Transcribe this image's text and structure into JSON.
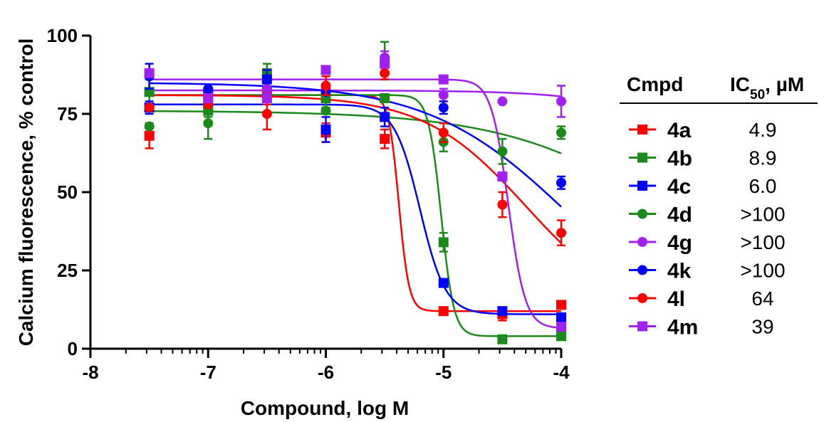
{
  "chart_data": {
    "type": "scatter",
    "xlabel": "Compound, log M",
    "ylabel": "Calcium fluorescence, % control",
    "xlim": [
      -8,
      -4
    ],
    "ylim": [
      0,
      100
    ],
    "x_ticks": [
      "-8",
      "-7",
      "-6",
      "-5",
      "-4"
    ],
    "y_ticks": [
      "0",
      "25",
      "50",
      "75",
      "100"
    ],
    "x_scale": "log concentration with minor decade ticks",
    "legend": {
      "placement": "right",
      "header_name": "Cmpd",
      "header_value_main": "IC",
      "header_value_sub": "50",
      "header_value_unit": ", µM"
    },
    "series": [
      {
        "name": "4a",
        "ic50": "4.9",
        "color": "#ff0000",
        "marker": "square",
        "x": [
          -7.5,
          -7,
          -6.5,
          -6,
          -5.5,
          -5,
          -4.5,
          -4
        ],
        "y": [
          68,
          78,
          82,
          69,
          67,
          12,
          11,
          14
        ],
        "err": [
          4,
          0,
          4,
          3,
          3,
          0,
          2,
          0
        ],
        "fit": {
          "top": 81,
          "bottom": 12,
          "logec50": -5.38,
          "hill": 10
        }
      },
      {
        "name": "4b",
        "ic50": "8.9",
        "color": "#1a8a1a",
        "marker": "square",
        "x": [
          -7.5,
          -7,
          -6.5,
          -6,
          -5.5,
          -5,
          -4.5,
          -4
        ],
        "y": [
          82,
          76,
          88,
          80,
          80,
          34,
          3,
          4
        ],
        "err": [
          4,
          2,
          3,
          3,
          0,
          3,
          0,
          0
        ],
        "fit": {
          "top": 81,
          "bottom": 4,
          "logec50": -5.02,
          "hill": 8
        }
      },
      {
        "name": "4c",
        "ic50": "6.0",
        "color": "#0000ff",
        "marker": "square",
        "x": [
          -7.5,
          -7,
          -6.5,
          -6,
          -5.5,
          -5,
          -4.5,
          -4
        ],
        "y": [
          77,
          81,
          86,
          70,
          74,
          21,
          12,
          10
        ],
        "err": [
          2,
          2,
          3,
          4,
          3,
          0,
          0,
          0
        ],
        "fit": {
          "top": 78,
          "bottom": 11,
          "logec50": -5.2,
          "hill": 4
        }
      },
      {
        "name": "4d",
        "ic50": ">100",
        "color": "#1a8a1a",
        "marker": "circle",
        "x": [
          -7.5,
          -7,
          -6.5,
          -6,
          -5.5,
          -5,
          -4.5,
          -4
        ],
        "y": [
          71,
          72,
          80,
          76,
          92,
          66,
          63,
          69
        ],
        "err": [
          0,
          5,
          0,
          0,
          6,
          3,
          4,
          2
        ],
        "fit": {
          "top": 76,
          "bottom": 0,
          "logec50": -2.9,
          "hill": 0.6
        }
      },
      {
        "name": "4g",
        "ic50": ">100",
        "color": "#a020f0",
        "marker": "circle",
        "x": [
          -7.5,
          -7,
          -6.5,
          -6,
          -5.5,
          -5,
          -4.5,
          -4
        ],
        "y": [
          87,
          81,
          83,
          83,
          93,
          81,
          79,
          79
        ],
        "err": [
          0,
          0,
          0,
          0,
          2,
          2,
          0,
          5
        ],
        "fit": {
          "top": 82.5,
          "bottom": 0,
          "logec50": -2.2,
          "hill": 0.9
        }
      },
      {
        "name": "4k",
        "ic50": ">100",
        "color": "#0000ff",
        "marker": "circle",
        "x": [
          -7.5,
          -7,
          -6.5,
          -6,
          -5.5,
          -5,
          -4.5,
          -4
        ],
        "y": [
          87,
          83,
          86,
          82,
          91,
          77,
          55,
          53
        ],
        "err": [
          4,
          0,
          0,
          0,
          0,
          2,
          0,
          2
        ],
        "fit": {
          "top": 85,
          "bottom": 0,
          "logec50": -3.92,
          "hill": 0.72
        }
      },
      {
        "name": "4l",
        "ic50": "64",
        "color": "#ff0000",
        "marker": "circle",
        "x": [
          -7.5,
          -7,
          -6.5,
          -6,
          -5.5,
          -5,
          -4.5,
          -4
        ],
        "y": [
          77,
          78,
          75,
          84,
          88,
          69,
          46,
          37
        ],
        "err": [
          0,
          0,
          5,
          3,
          2,
          3,
          4,
          4
        ],
        "fit": {
          "top": 81,
          "bottom": 10,
          "logec50": -4.3,
          "hill": 1.0
        }
      },
      {
        "name": "4m",
        "ic50": "39",
        "color": "#a020f0",
        "marker": "square",
        "x": [
          -7.5,
          -7,
          -6.5,
          -6,
          -5.5,
          -5,
          -4.5,
          -4
        ],
        "y": [
          88,
          80,
          80,
          89,
          91,
          86,
          55,
          7
        ],
        "err": [
          0,
          0,
          0,
          0,
          0,
          0,
          0,
          0
        ],
        "fit": {
          "top": 86,
          "bottom": 6.5,
          "logec50": -4.45,
          "hill": 6
        }
      }
    ]
  }
}
